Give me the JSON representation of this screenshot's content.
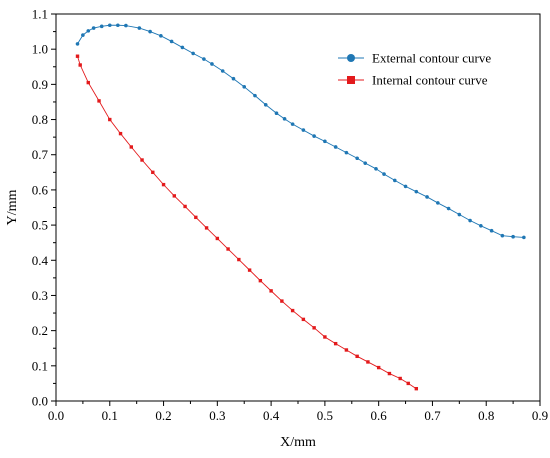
{
  "chart_data": {
    "type": "line",
    "xlabel": "X/mm",
    "ylabel": "Y/mm",
    "xlim": [
      0.0,
      0.9
    ],
    "ylim": [
      0.0,
      1.1
    ],
    "xticks": [
      "0.0",
      "0.1",
      "0.2",
      "0.3",
      "0.4",
      "0.5",
      "0.6",
      "0.7",
      "0.8",
      "0.9"
    ],
    "yticks": [
      "0.0",
      "0.1",
      "0.2",
      "0.3",
      "0.4",
      "0.5",
      "0.6",
      "0.7",
      "0.8",
      "0.9",
      "1.0",
      "1.1"
    ],
    "grid": false,
    "legend_position": "top-right",
    "series": [
      {
        "name": "External contour curve",
        "color": "#1f77b4",
        "marker": "circle",
        "x": [
          0.04,
          0.05,
          0.06,
          0.07,
          0.085,
          0.1,
          0.115,
          0.13,
          0.155,
          0.175,
          0.195,
          0.215,
          0.235,
          0.255,
          0.275,
          0.29,
          0.31,
          0.33,
          0.35,
          0.37,
          0.39,
          0.41,
          0.425,
          0.44,
          0.46,
          0.48,
          0.5,
          0.52,
          0.54,
          0.56,
          0.575,
          0.595,
          0.61,
          0.63,
          0.65,
          0.67,
          0.69,
          0.71,
          0.73,
          0.75,
          0.77,
          0.79,
          0.81,
          0.83,
          0.85,
          0.87
        ],
        "y": [
          1.015,
          1.04,
          1.052,
          1.06,
          1.065,
          1.068,
          1.068,
          1.067,
          1.06,
          1.05,
          1.038,
          1.022,
          1.005,
          0.988,
          0.972,
          0.958,
          0.938,
          0.916,
          0.893,
          0.868,
          0.842,
          0.818,
          0.802,
          0.787,
          0.77,
          0.753,
          0.738,
          0.722,
          0.706,
          0.69,
          0.676,
          0.66,
          0.645,
          0.627,
          0.61,
          0.595,
          0.58,
          0.563,
          0.547,
          0.53,
          0.513,
          0.498,
          0.484,
          0.47,
          0.467,
          0.465
        ]
      },
      {
        "name": "Internal contour curve",
        "color": "#e31a1c",
        "marker": "square",
        "x": [
          0.04,
          0.045,
          0.06,
          0.08,
          0.1,
          0.12,
          0.14,
          0.16,
          0.18,
          0.2,
          0.22,
          0.24,
          0.26,
          0.28,
          0.3,
          0.32,
          0.34,
          0.36,
          0.38,
          0.4,
          0.42,
          0.44,
          0.46,
          0.48,
          0.5,
          0.52,
          0.54,
          0.56,
          0.58,
          0.6,
          0.62,
          0.64,
          0.655,
          0.67
        ],
        "y": [
          0.98,
          0.955,
          0.905,
          0.853,
          0.8,
          0.76,
          0.722,
          0.685,
          0.65,
          0.615,
          0.583,
          0.553,
          0.522,
          0.492,
          0.462,
          0.432,
          0.402,
          0.372,
          0.342,
          0.313,
          0.284,
          0.257,
          0.232,
          0.208,
          0.182,
          0.163,
          0.145,
          0.127,
          0.111,
          0.095,
          0.078,
          0.064,
          0.05,
          0.035
        ]
      }
    ]
  }
}
